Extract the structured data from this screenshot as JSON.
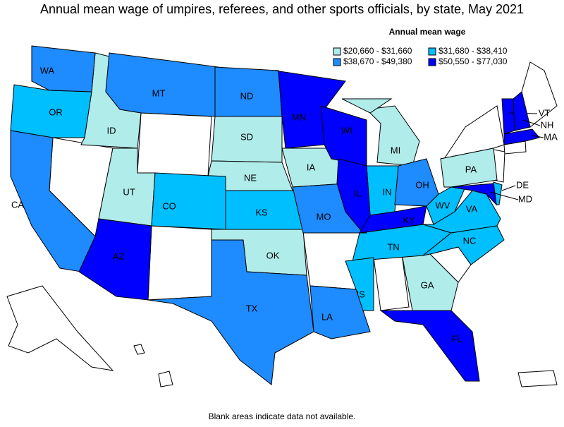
{
  "title": "Annual mean wage of umpires, referees, and other sports officials, by state, May 2021",
  "legend": {
    "title": "Annual mean wage",
    "items": [
      {
        "label": "$20,660 - $31,660",
        "color": "#b0ecea",
        "states": [
          "ID",
          "UT",
          "SD",
          "NE",
          "IA",
          "MI",
          "PA",
          "OK",
          "GA"
        ]
      },
      {
        "label": "$31,680 - $38,410",
        "color": "#00bfff",
        "states": [
          "OR",
          "CO",
          "KS",
          "IN",
          "WV",
          "VA",
          "TN",
          "NC",
          "MS",
          "DE"
        ]
      },
      {
        "label": "$38,670 - $49,380",
        "color": "#1e8bff",
        "states": [
          "WA",
          "MT",
          "ND",
          "CA",
          "TX",
          "LA",
          "MO",
          "OH"
        ]
      },
      {
        "label": "$50,550 - $77,030",
        "color": "#0000ff",
        "states": [
          "AZ",
          "MN",
          "WI",
          "IL",
          "KY",
          "FL",
          "MD",
          "VT",
          "NH",
          "MA"
        ]
      }
    ]
  },
  "footnote": "Blank areas indicate data not available."
}
